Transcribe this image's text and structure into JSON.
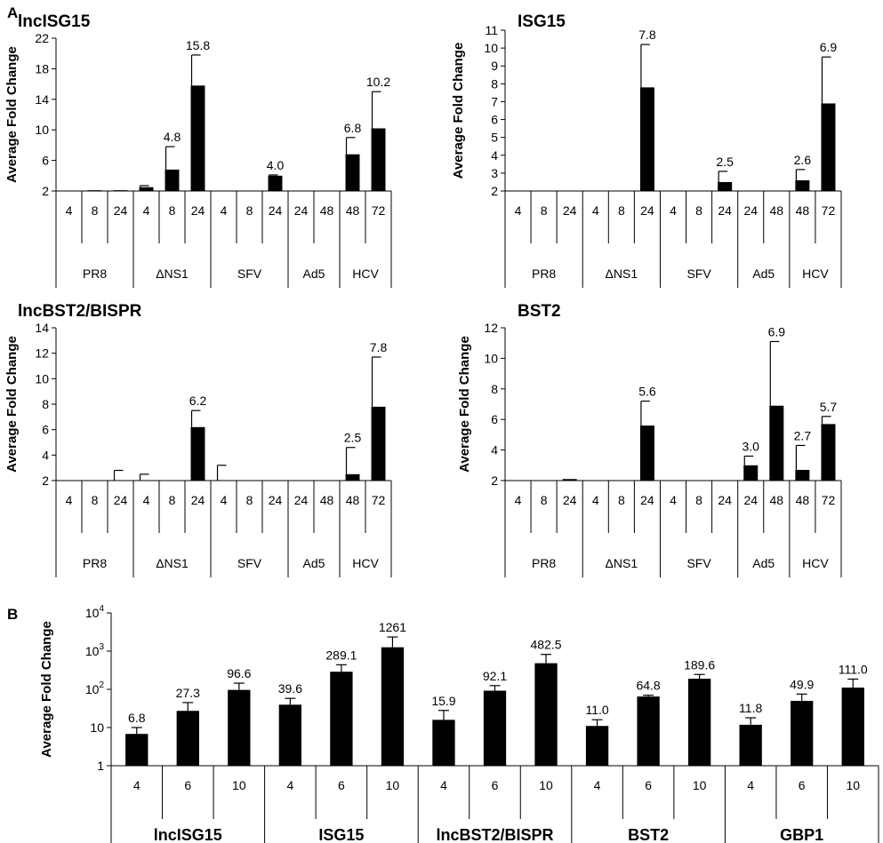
{
  "panel_labels": [
    "A",
    "B"
  ],
  "chart_data": [
    {
      "type": "bar",
      "panel": "A",
      "title": "lncISG15",
      "ylabel": "Average Fold Change",
      "ylim": [
        2,
        22
      ],
      "yticks": [
        2,
        6,
        10,
        14,
        18,
        22
      ],
      "yscale": "linear",
      "groups": [
        {
          "name": "PR8",
          "categories": [
            "4",
            "8",
            "24"
          ]
        },
        {
          "name": "ΔNS1",
          "categories": [
            "4",
            "8",
            "24"
          ]
        },
        {
          "name": "SFV",
          "categories": [
            "4",
            "8",
            "24"
          ]
        },
        {
          "name": "Ad5",
          "categories": [
            "24",
            "48"
          ]
        },
        {
          "name": "HCV",
          "categories": [
            "48",
            "72"
          ]
        }
      ],
      "values": [
        2.0,
        2.1,
        2.1,
        2.5,
        4.8,
        15.8,
        2.0,
        2.0,
        4.0,
        2.0,
        2.0,
        6.8,
        10.2
      ],
      "errors": [
        0,
        0,
        0,
        0.2,
        3.0,
        4.0,
        0,
        0,
        0.1,
        0,
        0,
        2.2,
        4.8
      ],
      "labels": [
        "",
        "",
        "",
        "",
        "4.8",
        "15.8",
        "",
        "",
        "4.0",
        "",
        "",
        "6.8",
        "10.2"
      ]
    },
    {
      "type": "bar",
      "panel": "A",
      "title": "ISG15",
      "ylabel": "Average Fold Change",
      "ylim": [
        2,
        11
      ],
      "yticks": [
        2,
        3,
        4,
        5,
        6,
        7,
        8,
        9,
        10,
        11
      ],
      "yscale": "linear",
      "groups": [
        {
          "name": "PR8",
          "categories": [
            "4",
            "8",
            "24"
          ]
        },
        {
          "name": "ΔNS1",
          "categories": [
            "4",
            "8",
            "24"
          ]
        },
        {
          "name": "SFV",
          "categories": [
            "4",
            "8",
            "24"
          ]
        },
        {
          "name": "Ad5",
          "categories": [
            "24",
            "48"
          ]
        },
        {
          "name": "HCV",
          "categories": [
            "48",
            "72"
          ]
        }
      ],
      "values": [
        2.0,
        2.0,
        2.0,
        2.0,
        2.0,
        7.8,
        2.0,
        2.0,
        2.5,
        2.0,
        2.0,
        2.6,
        6.9
      ],
      "errors": [
        0,
        0,
        0,
        0,
        0,
        2.4,
        0,
        0,
        0.6,
        0,
        0,
        0.6,
        2.6
      ],
      "labels": [
        "",
        "",
        "",
        "",
        "",
        "7.8",
        "",
        "",
        "2.5",
        "",
        "",
        "2.6",
        "6.9"
      ]
    },
    {
      "type": "bar",
      "panel": "A",
      "title": "lncBST2/BISPR",
      "ylabel": "Average Fold Change",
      "ylim": [
        2,
        14
      ],
      "yticks": [
        2,
        4,
        6,
        8,
        10,
        12,
        14
      ],
      "yscale": "linear",
      "groups": [
        {
          "name": "PR8",
          "categories": [
            "4",
            "8",
            "24"
          ]
        },
        {
          "name": "ΔNS1",
          "categories": [
            "4",
            "8",
            "24"
          ]
        },
        {
          "name": "SFV",
          "categories": [
            "4",
            "8",
            "24"
          ]
        },
        {
          "name": "Ad5",
          "categories": [
            "24",
            "48"
          ]
        },
        {
          "name": "HCV",
          "categories": [
            "48",
            "72"
          ]
        }
      ],
      "values": [
        2.0,
        2.0,
        2.0,
        2.0,
        2.0,
        6.2,
        2.0,
        2.0,
        2.0,
        2.0,
        2.0,
        2.5,
        7.8
      ],
      "errors": [
        0,
        0,
        0.8,
        0.5,
        0,
        1.3,
        1.2,
        0,
        0,
        0,
        0,
        2.1,
        3.9
      ],
      "labels": [
        "",
        "",
        "",
        "",
        "",
        "6.2",
        "",
        "",
        "",
        "",
        "",
        "2.5",
        "7.8"
      ]
    },
    {
      "type": "bar",
      "panel": "A",
      "title": "BST2",
      "ylabel": "Average Fold Change",
      "ylim": [
        2,
        12
      ],
      "yticks": [
        2,
        4,
        6,
        8,
        10,
        12
      ],
      "yscale": "linear",
      "groups": [
        {
          "name": "PR8",
          "categories": [
            "4",
            "8",
            "24"
          ]
        },
        {
          "name": "ΔNS1",
          "categories": [
            "4",
            "8",
            "24"
          ]
        },
        {
          "name": "SFV",
          "categories": [
            "4",
            "8",
            "24"
          ]
        },
        {
          "name": "Ad5",
          "categories": [
            "24",
            "48"
          ]
        },
        {
          "name": "HCV",
          "categories": [
            "48",
            "72"
          ]
        }
      ],
      "values": [
        2.0,
        2.0,
        2.1,
        2.0,
        2.0,
        5.6,
        2.0,
        2.0,
        2.0,
        3.0,
        6.9,
        2.7,
        5.7
      ],
      "errors": [
        0,
        0,
        0,
        0,
        0,
        1.6,
        0,
        0,
        0,
        0.6,
        4.2,
        1.6,
        0.5
      ],
      "labels": [
        "",
        "",
        "",
        "",
        "",
        "5.6",
        "",
        "",
        "",
        "3.0",
        "6.9",
        "2.7",
        "5.7"
      ]
    },
    {
      "type": "bar",
      "panel": "B",
      "title": "",
      "ylabel": "Average Fold Change",
      "ylim": [
        1,
        10000
      ],
      "yticks": [
        1,
        10,
        100,
        1000,
        10000
      ],
      "ytick_labels": [
        {
          "base": "1",
          "exp": ""
        },
        {
          "base": "10",
          "exp": ""
        },
        {
          "base": "10",
          "exp": "2"
        },
        {
          "base": "10",
          "exp": "3"
        },
        {
          "base": "10",
          "exp": "4"
        }
      ],
      "yscale": "log",
      "groups": [
        {
          "name": "lncISG15",
          "categories": [
            "4",
            "6",
            "10"
          ]
        },
        {
          "name": "ISG15",
          "categories": [
            "4",
            "6",
            "10"
          ]
        },
        {
          "name": "lncBST2/BISPR",
          "categories": [
            "4",
            "6",
            "10"
          ]
        },
        {
          "name": "BST2",
          "categories": [
            "4",
            "6",
            "10"
          ]
        },
        {
          "name": "GBP1",
          "categories": [
            "4",
            "6",
            "10"
          ]
        }
      ],
      "values": [
        6.8,
        27.3,
        96.6,
        39.6,
        289.1,
        1261,
        15.9,
        92.1,
        482.5,
        11.0,
        64.8,
        189.6,
        11.8,
        49.9,
        111.0
      ],
      "errors_hi": [
        10,
        45,
        145,
        58,
        440,
        2350,
        28,
        125,
        820,
        16,
        70,
        245,
        18,
        75,
        185
      ],
      "labels": [
        "6.8",
        "27.3",
        "96.6",
        "39.6",
        "289.1",
        "1261",
        "15.9",
        "92.1",
        "482.5",
        "11.0",
        "64.8",
        "189.6",
        "11.8",
        "49.9",
        "111.0"
      ]
    }
  ]
}
